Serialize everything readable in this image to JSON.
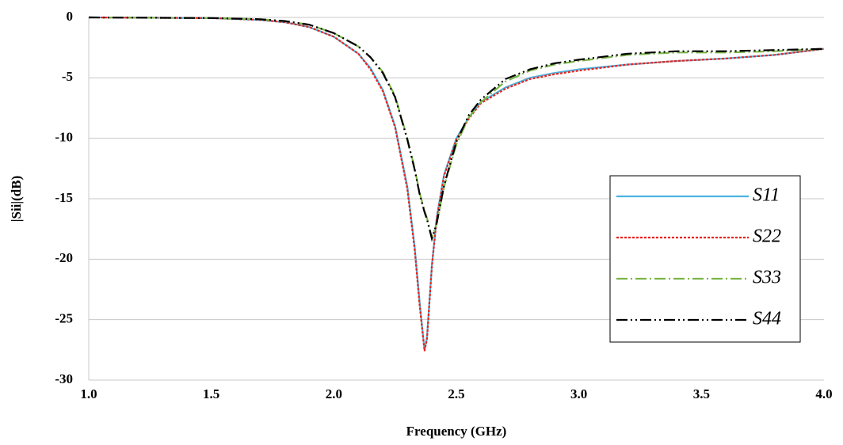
{
  "chart_data": {
    "type": "line",
    "x_label": "Frequency (GHz)",
    "y_label": "|Sii|(dB)",
    "x": [
      1.0,
      1.5,
      1.7,
      1.8,
      1.9,
      2.0,
      2.1,
      2.15,
      2.2,
      2.25,
      2.3,
      2.33,
      2.35,
      2.37,
      2.38,
      2.4,
      2.42,
      2.45,
      2.5,
      2.55,
      2.6,
      2.7,
      2.8,
      2.9,
      3.0,
      3.2,
      3.4,
      3.6,
      3.8,
      4.0
    ],
    "series": [
      {
        "name": "S11",
        "color": "#4db3e0",
        "style": "solid",
        "values": [
          0,
          -0.05,
          -0.2,
          -0.4,
          -0.8,
          -1.6,
          -3.0,
          -4.2,
          -6.0,
          -9.0,
          -14.0,
          -19.0,
          -23.5,
          -27.5,
          -26.5,
          -20.5,
          -16.5,
          -13.0,
          -10.0,
          -8.3,
          -7.0,
          -5.8,
          -5.0,
          -4.6,
          -4.3,
          -3.9,
          -3.6,
          -3.4,
          -3.1,
          -2.6
        ]
      },
      {
        "name": "S22",
        "color": "#e8231e",
        "style": "dotted",
        "values": [
          0,
          -0.05,
          -0.2,
          -0.4,
          -0.8,
          -1.6,
          -3.0,
          -4.3,
          -6.1,
          -9.1,
          -14.2,
          -19.2,
          -23.8,
          -27.6,
          -26.6,
          -20.6,
          -16.6,
          -13.1,
          -10.1,
          -8.4,
          -7.1,
          -5.9,
          -5.1,
          -4.7,
          -4.4,
          -3.9,
          -3.6,
          -3.4,
          -3.1,
          -2.6
        ]
      },
      {
        "name": "S33",
        "color": "#7ab648",
        "style": "dashdot",
        "values": [
          0,
          -0.05,
          -0.15,
          -0.3,
          -0.6,
          -1.3,
          -2.4,
          -3.3,
          -4.5,
          -6.5,
          -10.0,
          -12.5,
          -14.5,
          -16.0,
          -16.6,
          -18.2,
          -17.0,
          -14.0,
          -10.5,
          -8.3,
          -7.0,
          -5.3,
          -4.4,
          -3.9,
          -3.6,
          -3.1,
          -2.9,
          -2.9,
          -2.8,
          -2.6
        ]
      },
      {
        "name": "S44",
        "color": "#000000",
        "style": "dashdotdot",
        "values": [
          0,
          -0.05,
          -0.15,
          -0.3,
          -0.6,
          -1.3,
          -2.4,
          -3.3,
          -4.6,
          -6.6,
          -10.1,
          -12.6,
          -14.6,
          -16.1,
          -16.7,
          -18.3,
          -17.0,
          -13.9,
          -10.3,
          -8.1,
          -6.8,
          -5.1,
          -4.3,
          -3.8,
          -3.5,
          -3.0,
          -2.8,
          -2.8,
          -2.7,
          -2.6
        ]
      }
    ],
    "xlim": [
      1.0,
      4.0
    ],
    "xticks": [
      {
        "value": 1.0,
        "label": "1.0"
      },
      1.5,
      {
        "value": 2.0,
        "label": "2.0"
      },
      2.5,
      {
        "value": 3.0,
        "label": "3.0"
      },
      3.5,
      {
        "value": 4.0,
        "label": "4.0"
      }
    ],
    "ylim": [
      -30,
      0
    ],
    "yticks": [
      0,
      -5,
      -10,
      -15,
      -20,
      -25,
      -30
    ],
    "grid": true
  }
}
